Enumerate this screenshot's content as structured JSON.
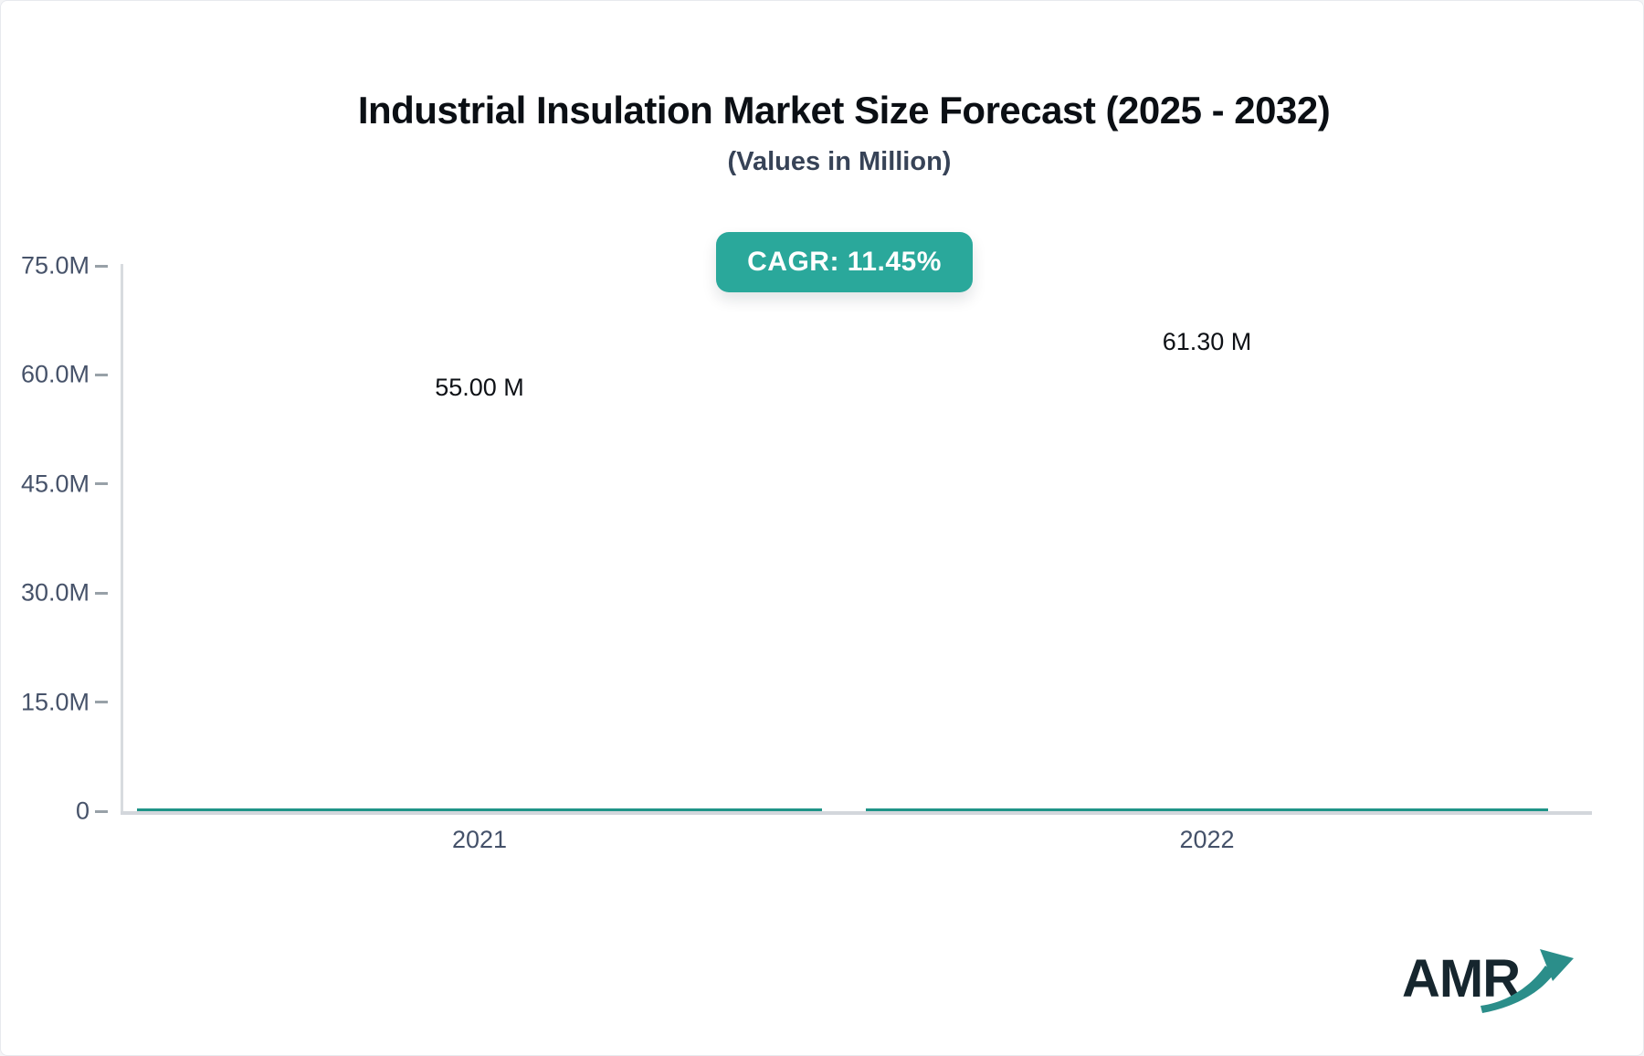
{
  "page": {
    "background": "#FFFFFF",
    "border_color": "#E7E9EE"
  },
  "header": {
    "title": "Industrial Insulation Market Size Forecast (2025 - 2032)",
    "subtitle": "(Values in Million)",
    "cagr_badge": "CAGR: 11.45%",
    "badge_color": "#2AA89B"
  },
  "chart_data": {
    "type": "bar",
    "title": "Industrial Insulation Market Size Forecast (2025 - 2032)",
    "subtitle": "(Values in Million)",
    "unit": "Million (M)",
    "categories": [
      "2021",
      "2022"
    ],
    "values": [
      55.0,
      61.3
    ],
    "value_labels": [
      "55.00 M",
      "61.30 M"
    ],
    "cagr_percent": 11.45,
    "xlabel": "",
    "ylabel": "",
    "ylim": [
      0,
      75
    ],
    "y_ticks": [
      "0",
      "15.0M",
      "30.0M",
      "45.0M",
      "60.0M",
      "75.0M"
    ],
    "grid": false,
    "legend": "none",
    "bar_color_top": "#4FB4AB",
    "bar_color_bottom": "#2BA496",
    "bar_border_color": "#1F9488",
    "axis_line_color": "#D5D9DE",
    "axis_text_color": "#47536A"
  },
  "logo": {
    "text": "AMR",
    "arrow_color": "#2B8E8A",
    "text_color": "#16262E"
  }
}
